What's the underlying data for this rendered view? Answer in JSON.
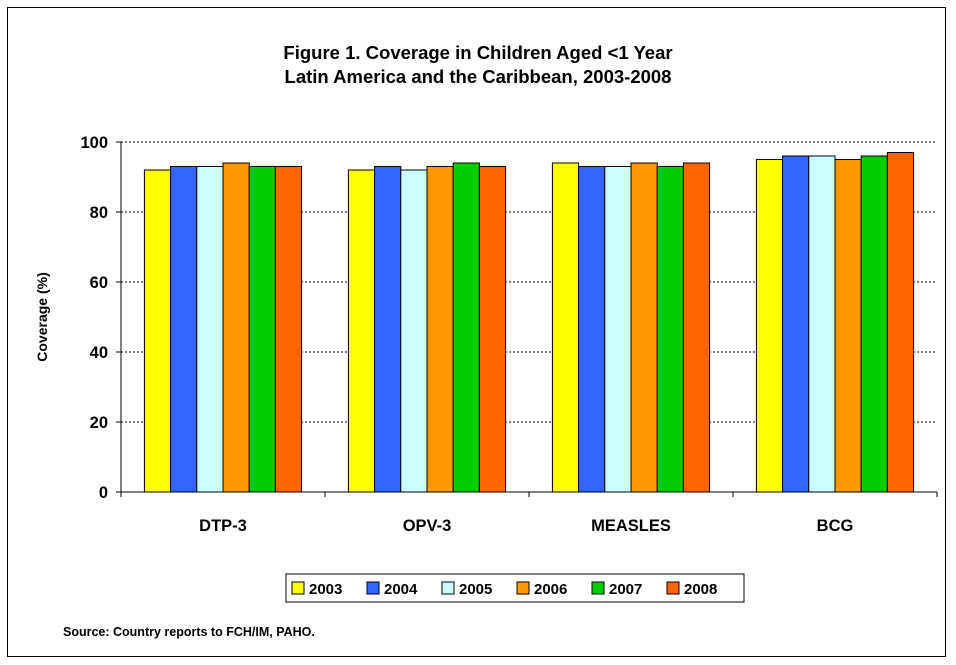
{
  "chart_data": {
    "type": "bar",
    "title": "Figure 1. Coverage in Children Aged <1 Year",
    "subtitle": "Latin America and the Caribbean, 2003-2008",
    "xlabel": "",
    "ylabel": "Coverage (%)",
    "ylim": [
      0,
      100
    ],
    "yticks": [
      0,
      20,
      40,
      60,
      80,
      100
    ],
    "grid": true,
    "legend_position": "bottom",
    "categories": [
      "DTP-3",
      "OPV-3",
      "MEASLES",
      "BCG"
    ],
    "series": [
      {
        "name": "2003",
        "color": "#ffff00",
        "values": [
          92,
          92,
          94,
          95
        ]
      },
      {
        "name": "2004",
        "color": "#3366ff",
        "values": [
          93,
          93,
          93,
          96
        ]
      },
      {
        "name": "2005",
        "color": "#ccffff",
        "values": [
          93,
          92,
          93,
          96
        ]
      },
      {
        "name": "2006",
        "color": "#ff9900",
        "values": [
          94,
          93,
          94,
          95
        ]
      },
      {
        "name": "2007",
        "color": "#00cc00",
        "values": [
          93,
          94,
          93,
          96
        ]
      },
      {
        "name": "2008",
        "color": "#ff6600",
        "values": [
          93,
          93,
          94,
          97
        ]
      }
    ]
  },
  "source": "Source: Country reports to FCH/IM, PAHO."
}
